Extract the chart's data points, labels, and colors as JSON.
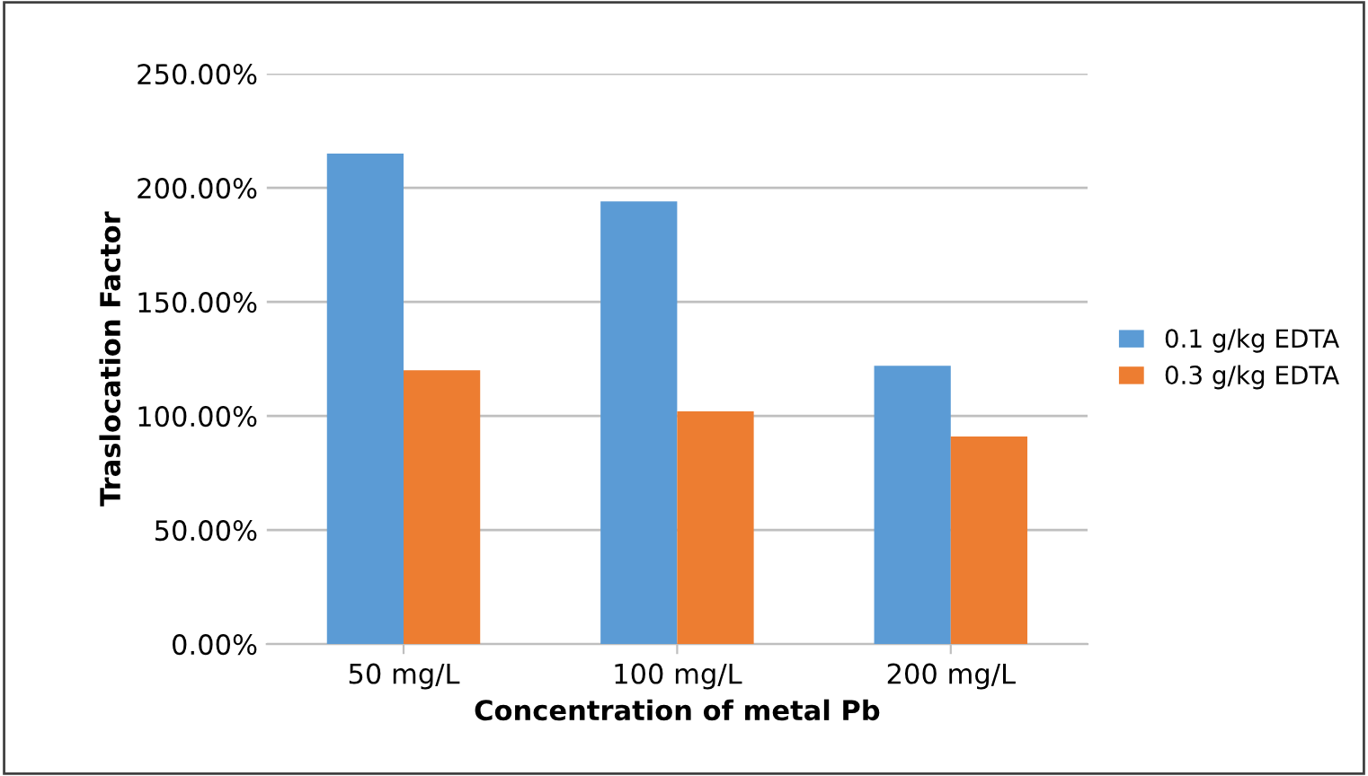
{
  "chart_data": {
    "type": "bar",
    "xlabel": "Concentration of metal Pb",
    "ylabel": "Traslocation Factor",
    "categories": [
      "50 mg/L",
      "100 mg/L",
      "200 mg/L"
    ],
    "series": [
      {
        "name": "0.1 g/kg EDTA",
        "color": "#5b9bd5",
        "values": [
          215,
          194,
          122
        ]
      },
      {
        "name": "0.3 g/kg EDTA",
        "color": "#ed7d31",
        "values": [
          120,
          102,
          91
        ]
      }
    ],
    "ylim": [
      0,
      250
    ],
    "yticks": [
      {
        "value": 0,
        "label": "0.00%"
      },
      {
        "value": 50,
        "label": "50.00%"
      },
      {
        "value": 100,
        "label": "100.00%"
      },
      {
        "value": 150,
        "label": "150.00%"
      },
      {
        "value": 200,
        "label": "200.00%"
      },
      {
        "value": 250,
        "label": "250.00%"
      }
    ],
    "grid": "y",
    "legend": "right"
  }
}
